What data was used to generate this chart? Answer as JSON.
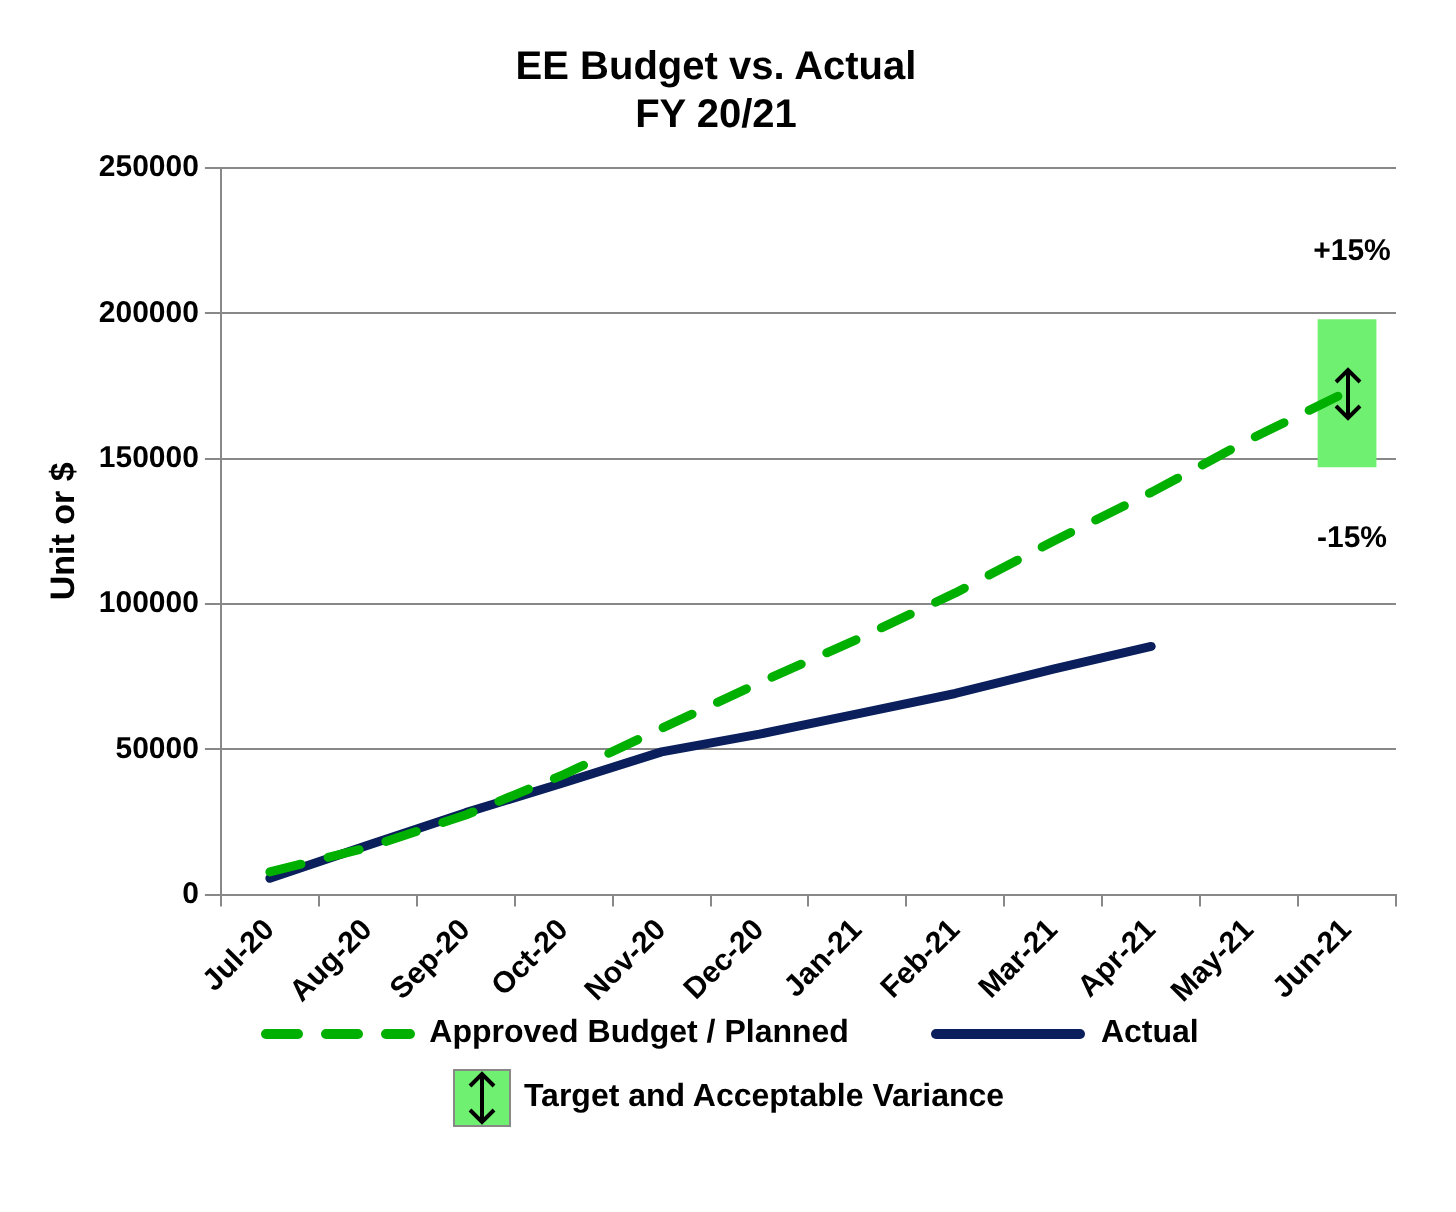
{
  "chart_data": {
    "type": "line",
    "title": "EE Budget vs. Actual",
    "subtitle": "FY 20/21",
    "ylabel": "Unit or $",
    "categories": [
      "Jul-20",
      "Aug-20",
      "Sep-20",
      "Oct-20",
      "Nov-20",
      "Dec-20",
      "Jan-21",
      "Feb-21",
      "Mar-21",
      "Apr-21",
      "May-21",
      "Jun-21"
    ],
    "series": [
      {
        "name": "Approved Budget / Planned",
        "color": "#00b000",
        "line_style": "dashed",
        "values": [
          7800,
          16200,
          27400,
          41300,
          57200,
          72900,
          87900,
          103800,
          121600,
          138400,
          156500,
          173000
        ]
      },
      {
        "name": "Actual",
        "color": "#0a1f5c",
        "line_style": "solid",
        "values": [
          5600,
          17000,
          28200,
          38500,
          49100,
          55200,
          62200,
          69200,
          77600,
          85400,
          null,
          null
        ]
      },
      {
        "name": "Target and Acceptable Variance",
        "type": "bar",
        "color": "#70f070",
        "base": [
          null,
          null,
          null,
          null,
          null,
          null,
          null,
          null,
          null,
          null,
          null,
          147000
        ],
        "values": [
          null,
          null,
          null,
          null,
          null,
          null,
          null,
          null,
          null,
          null,
          null,
          51000
        ]
      }
    ],
    "marker": "none",
    "ylim": [
      0,
      250000
    ],
    "yticks": [
      0,
      50000,
      100000,
      150000,
      200000,
      250000
    ],
    "grid": "y",
    "legend": "bottom",
    "annotations": [
      "+15%",
      "-15%"
    ]
  }
}
